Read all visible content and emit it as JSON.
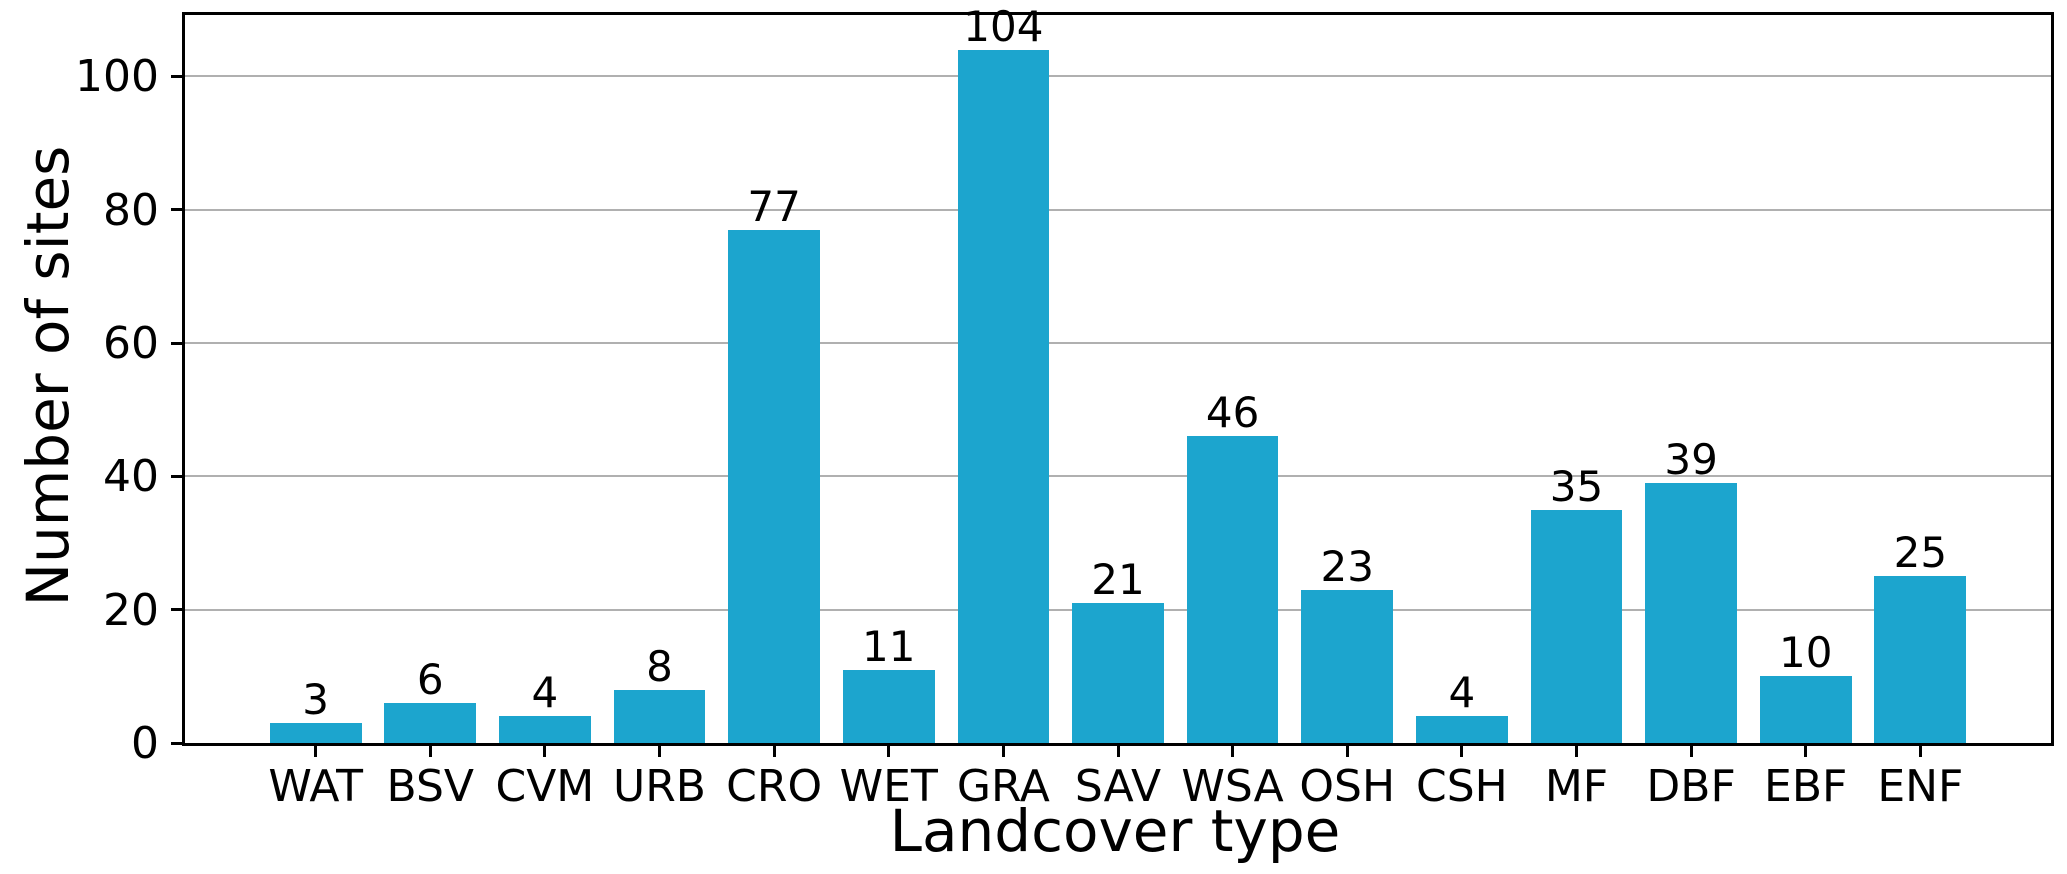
{
  "chart_data": {
    "type": "bar",
    "title": "",
    "xlabel": "Landcover type",
    "ylabel": "Number of sites",
    "categories": [
      "WAT",
      "BSV",
      "CVM",
      "URB",
      "CRO",
      "WET",
      "GRA",
      "SAV",
      "WSA",
      "OSH",
      "CSH",
      "MF",
      "DBF",
      "EBF",
      "ENF"
    ],
    "values": [
      3,
      6,
      4,
      8,
      77,
      11,
      104,
      21,
      46,
      23,
      4,
      35,
      39,
      10,
      25
    ],
    "yticks": [
      0,
      20,
      40,
      60,
      80,
      100
    ],
    "ylim": [
      0,
      109.2
    ],
    "xlim": [
      -1.14,
      15.14
    ],
    "bar_width_frac": 0.8,
    "grid": "horizontal-on",
    "legend": "none",
    "bar_color": "#1CA5CE",
    "grid_color": "#b0b0b0",
    "axis_color": "#000000",
    "text_color": "#000000"
  }
}
